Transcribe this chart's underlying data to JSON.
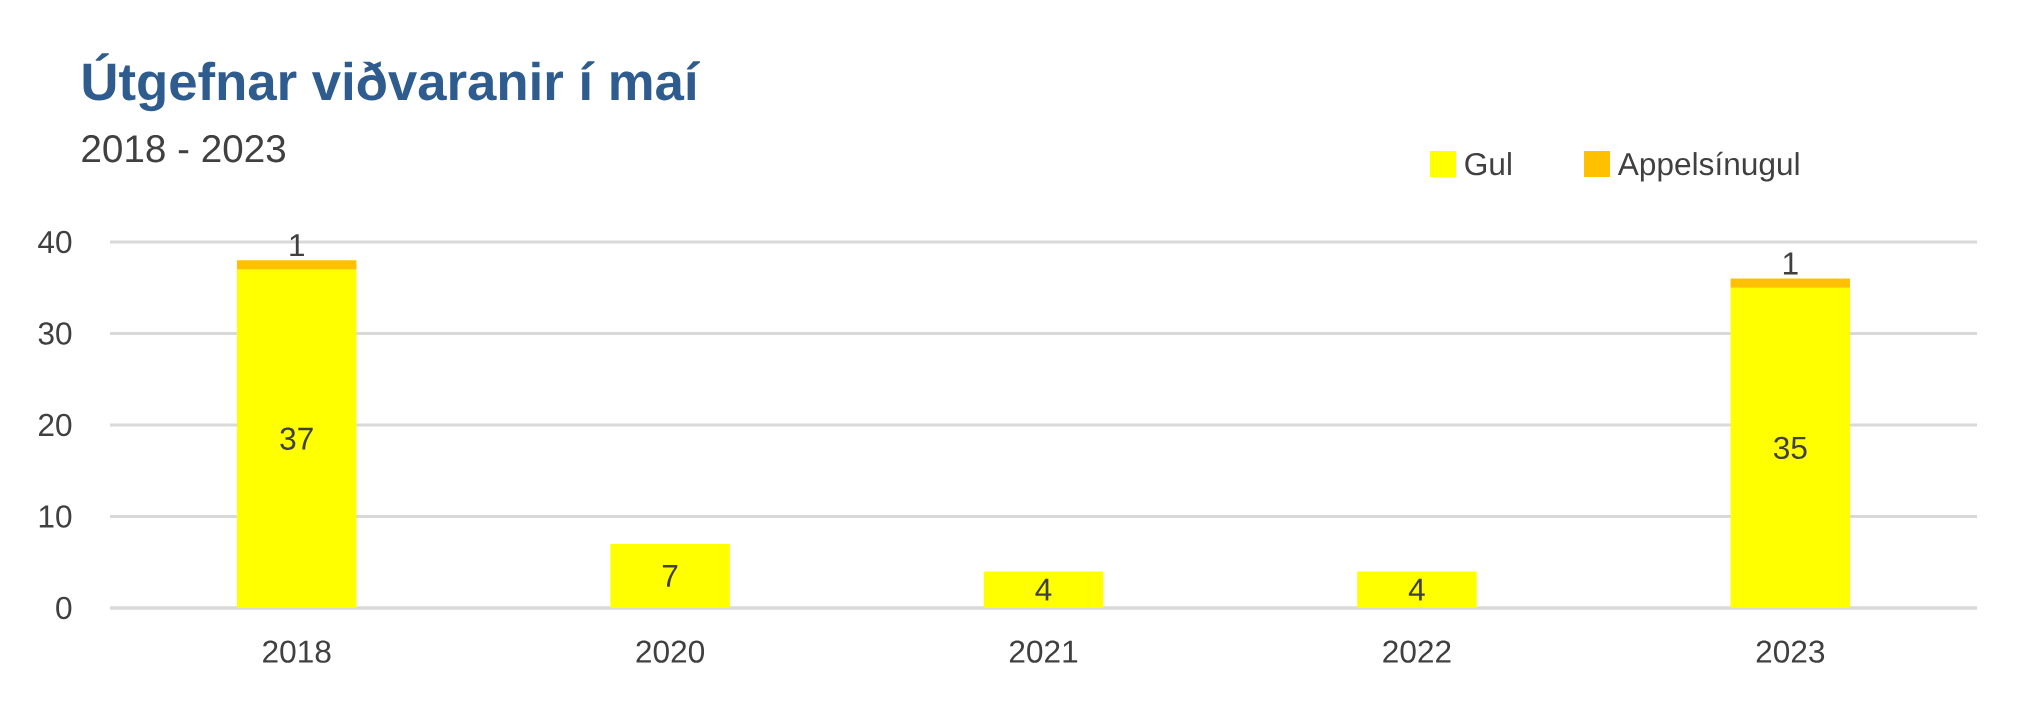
{
  "chart_data": {
    "type": "bar",
    "title": "Útgefnar viðvaranir í maí",
    "subtitle": "2018 - 2023",
    "categories": [
      "2018",
      "2020",
      "2021",
      "2022",
      "2023"
    ],
    "series": [
      {
        "name": "Gul",
        "color": "#ffff00",
        "values": [
          37,
          7,
          4,
          4,
          35
        ]
      },
      {
        "name": "Appelsínugul",
        "color": "#ffc000",
        "values": [
          1,
          null,
          null,
          null,
          1
        ]
      }
    ],
    "stacked": true,
    "data_labels": true,
    "ylim": [
      0,
      40
    ],
    "yticks": [
      0,
      10,
      20,
      30,
      40
    ],
    "grid": "y",
    "legend": "top right"
  }
}
